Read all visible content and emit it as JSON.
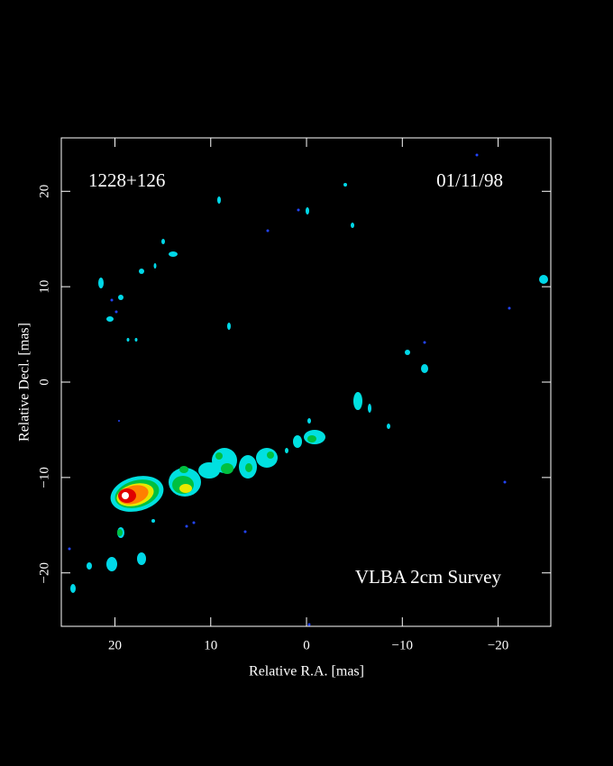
{
  "chart_data": {
    "type": "contour_map",
    "annotations": [
      "1228+126",
      "01/11/98",
      "VLBA 2cm Survey"
    ],
    "xlabel": "Relative R.A. [mas]",
    "ylabel": "Relative Decl. [mas]",
    "xlim": [
      25.6,
      -25.5
    ],
    "ylim": [
      -25.6,
      25.6
    ],
    "xticks": [
      20,
      10,
      0,
      {
        "value": -10,
        "label": "−10"
      },
      {
        "value": -20,
        "label": "−20"
      }
    ],
    "yticks": [
      {
        "value": -20,
        "label": "−20"
      },
      {
        "value": -10,
        "label": "−10"
      },
      0,
      10,
      20
    ]
  }
}
